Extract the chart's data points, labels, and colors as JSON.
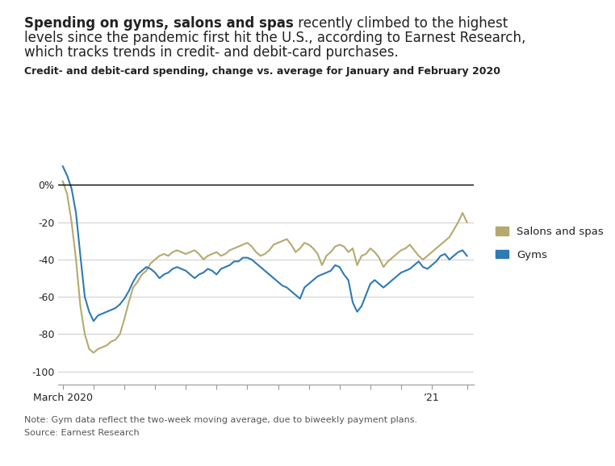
{
  "title_bold": "Spending on gyms, salons and spas",
  "title_rest_line1": " recently climbed to the highest",
  "title_line2": "levels since the pandemic first hit the U.S., according to Earnest Research,",
  "title_line3": "which tracks trends in credit- and debit-card purchases.",
  "subtitle": "Credit- and debit-card spending, change vs. average for January and February 2020",
  "note": "Note: Gym data reflect the two-week moving average, due to biweekly payment plans.",
  "source": "Source: Earnest Research",
  "legend_salons": "Salons and spas",
  "legend_gyms": "Gyms",
  "salons_color": "#b5aa6e",
  "gyms_color": "#2e7ab5",
  "background_color": "#ffffff",
  "text_color": "#222222",
  "grid_color": "#cccccc",
  "axis_color": "#999999",
  "ylim": [
    -107,
    18
  ],
  "yticks": [
    0,
    -20,
    -40,
    -60,
    -80,
    -100
  ],
  "ytick_labels": [
    "0%",
    "-20",
    "-40",
    "-60",
    "-80",
    "-100"
  ],
  "salons_y": [
    2,
    -5,
    -20,
    -40,
    -65,
    -80,
    -88,
    -90,
    -88,
    -87,
    -86,
    -84,
    -83,
    -80,
    -72,
    -63,
    -55,
    -52,
    -48,
    -46,
    -42,
    -40,
    -38,
    -37,
    -38,
    -36,
    -35,
    -36,
    -37,
    -36,
    -35,
    -37,
    -40,
    -38,
    -37,
    -36,
    -38,
    -37,
    -35,
    -34,
    -33,
    -32,
    -31,
    -33,
    -36,
    -38,
    -37,
    -35,
    -32,
    -31,
    -30,
    -29,
    -32,
    -36,
    -34,
    -31,
    -32,
    -34,
    -37,
    -43,
    -38,
    -36,
    -33,
    -32,
    -33,
    -36,
    -34,
    -43,
    -38,
    -37,
    -34,
    -36,
    -39,
    -44,
    -41,
    -39,
    -37,
    -35,
    -34,
    -32,
    -35,
    -38,
    -40,
    -38,
    -36,
    -34,
    -32,
    -30,
    -28,
    -24,
    -20,
    -15,
    -20
  ],
  "gyms_y": [
    10,
    5,
    -2,
    -15,
    -38,
    -60,
    -68,
    -73,
    -70,
    -69,
    -68,
    -67,
    -66,
    -64,
    -61,
    -57,
    -52,
    -48,
    -46,
    -44,
    -45,
    -47,
    -50,
    -48,
    -47,
    -45,
    -44,
    -45,
    -46,
    -48,
    -50,
    -48,
    -47,
    -45,
    -46,
    -48,
    -45,
    -44,
    -43,
    -41,
    -41,
    -39,
    -39,
    -40,
    -42,
    -44,
    -46,
    -48,
    -50,
    -52,
    -54,
    -55,
    -57,
    -59,
    -61,
    -55,
    -53,
    -51,
    -49,
    -48,
    -47,
    -46,
    -43,
    -44,
    -48,
    -51,
    -63,
    -68,
    -65,
    -59,
    -53,
    -51,
    -53,
    -55,
    -53,
    -51,
    -49,
    -47,
    -46,
    -45,
    -43,
    -41,
    -44,
    -45,
    -43,
    -41,
    -38,
    -37,
    -40,
    -38,
    -36,
    -35,
    -38
  ],
  "n_points": 93,
  "month_tick_positions": [
    0,
    7,
    14,
    21,
    28,
    35,
    42,
    49,
    56,
    63,
    70,
    77,
    84,
    92
  ],
  "month_tick_labels": [
    "March 2020",
    "",
    "",
    "",
    "",
    "",
    "",
    "",
    "",
    "",
    "",
    "",
    "’21",
    ""
  ]
}
